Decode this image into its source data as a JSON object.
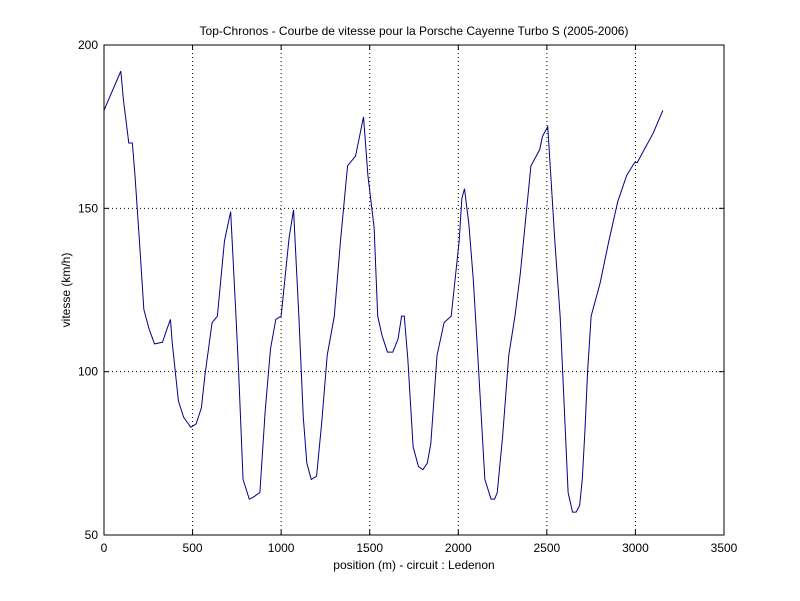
{
  "chart_data": {
    "type": "line",
    "title": "Top-Chronos - Courbe de vitesse pour la Porsche Cayenne Turbo S (2005-2006)",
    "xlabel": "position (m) - circuit : Ledenon",
    "ylabel": "vitesse (km/h)",
    "xlim": [
      0,
      3500
    ],
    "ylim": [
      50,
      200
    ],
    "xticks": [
      0,
      500,
      1000,
      1500,
      2000,
      2500,
      3000,
      3500
    ],
    "yticks": [
      50,
      100,
      150,
      200
    ],
    "grid": true,
    "series": [
      {
        "color": "#00008b",
        "x": [
          0,
          95,
          110,
          140,
          160,
          175,
          200,
          225,
          255,
          285,
          330,
          355,
          375,
          385,
          420,
          450,
          490,
          520,
          550,
          570,
          610,
          640,
          680,
          715,
          745,
          760,
          785,
          820,
          840,
          880,
          910,
          940,
          970,
          1000,
          1045,
          1070,
          1100,
          1125,
          1145,
          1170,
          1200,
          1230,
          1260,
          1300,
          1335,
          1375,
          1420,
          1465,
          1490,
          1525,
          1545,
          1570,
          1600,
          1630,
          1660,
          1680,
          1695,
          1715,
          1745,
          1775,
          1800,
          1825,
          1845,
          1880,
          1920,
          1960,
          2005,
          2020,
          2035,
          2060,
          2085,
          2110,
          2150,
          2185,
          2205,
          2220,
          2250,
          2285,
          2320,
          2350,
          2410,
          2460,
          2475,
          2505,
          2520,
          2545,
          2575,
          2620,
          2645,
          2665,
          2685,
          2700,
          2715,
          2730,
          2750,
          2800,
          2850,
          2900,
          2950,
          2995,
          3010,
          3050,
          3100,
          3155
        ],
        "y": [
          180,
          192,
          183,
          170,
          170,
          160,
          140,
          119,
          113,
          108.5,
          109,
          113,
          116,
          109,
          91,
          86,
          83,
          84,
          89,
          99,
          115,
          117,
          140,
          149,
          117,
          100,
          67,
          61,
          61.5,
          63,
          88,
          107,
          116,
          117,
          141,
          149.5,
          117,
          86,
          72,
          67,
          68,
          85,
          105,
          117,
          140,
          163,
          166,
          178,
          160,
          144,
          117,
          111,
          106,
          106,
          110,
          117,
          117,
          104,
          77,
          71,
          70,
          72,
          78,
          105,
          115,
          117,
          140,
          153,
          156,
          145,
          128,
          105,
          67,
          61,
          61,
          63,
          80,
          105,
          117,
          130,
          163,
          168,
          172,
          175,
          162,
          140,
          117,
          63,
          57,
          57,
          59,
          67,
          82,
          100,
          117,
          127,
          140,
          152,
          160,
          164,
          164,
          168,
          173,
          180
        ]
      }
    ]
  }
}
